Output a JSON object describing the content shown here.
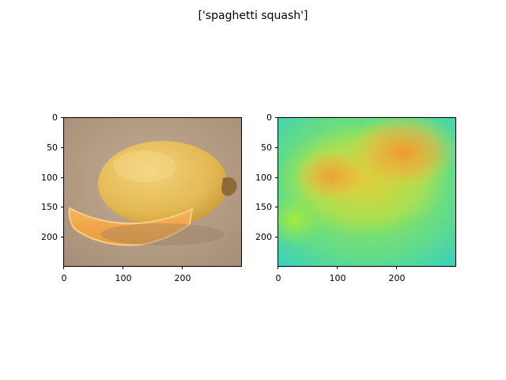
{
  "figure": {
    "suptitle": "['spaghetti squash']",
    "colors": {
      "background": "#ffffff",
      "axis": "#000000",
      "photo_backdrop": "#b59c85",
      "squash_body": "#e5bd5c",
      "squash_slice": "#f0a84c",
      "heatmap_low": "#2ad4c0",
      "heatmap_mid": "#a8ec3a",
      "heatmap_high": "#f79a28"
    }
  },
  "chart_data": [
    {
      "type": "image",
      "title": "",
      "content": "photo",
      "subject": "spaghetti squash",
      "xlabel": "",
      "ylabel": "",
      "xlim": [
        0,
        299
      ],
      "ylim": [
        249,
        0
      ],
      "xticks": [
        0,
        100,
        200
      ],
      "xtick_labels": [
        "0",
        "100",
        "200"
      ],
      "yticks": [
        0,
        50,
        100,
        150,
        200
      ],
      "ytick_labels": [
        "0",
        "50",
        "100",
        "150",
        "200"
      ]
    },
    {
      "type": "heatmap",
      "title": "",
      "content": "saliency map",
      "colormap": "jet-like (cyan → green → orange)",
      "xlabel": "",
      "ylabel": "",
      "xlim": [
        0,
        299
      ],
      "ylim": [
        249,
        0
      ],
      "xticks": [
        0,
        100,
        200
      ],
      "xtick_labels": [
        "0",
        "100",
        "200"
      ],
      "yticks": [
        0,
        50,
        100,
        150,
        200
      ],
      "ytick_labels": [
        "0",
        "50",
        "100",
        "150",
        "200"
      ]
    }
  ]
}
